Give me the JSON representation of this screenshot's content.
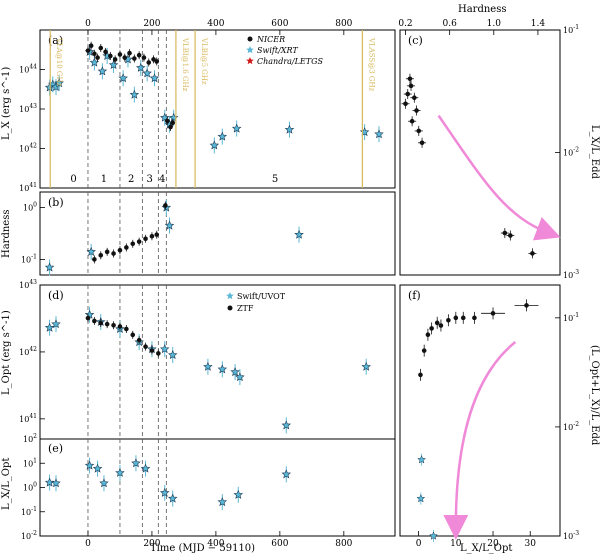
{
  "figure": {
    "top_axis_label": "",
    "hardness_axis_label": "Hardness",
    "bottom_xlabel": "Time (MJD − 59110)",
    "right_bottom_xlabel": "L_X/L_Opt"
  },
  "colors": {
    "nicer": "#111111",
    "swift": "#5ab7d6",
    "chandra": "#d11a1a",
    "radio_line": "#d7b85a",
    "arrow": "#f08ad8"
  },
  "chart_data": [
    {
      "id": "a",
      "type": "scatter",
      "panel_label": "(a)",
      "ylabel": "L_X (erg s^-1)",
      "ylog": true,
      "ylim": [
        1e+40,
        1e+44
      ],
      "xlim": [
        -150,
        960
      ],
      "yticks": [
        "10^41",
        "10^42",
        "10^43",
        "10^44"
      ],
      "xticks_top": [
        "0",
        "200",
        "400",
        "600",
        "800"
      ],
      "xtick_values": [
        0,
        200,
        400,
        600,
        800
      ],
      "legend": [
        {
          "name": "NICER",
          "marker": "dot",
          "color": "#111111"
        },
        {
          "name": "Swift/XRT",
          "marker": "star",
          "color": "#5ab7d6"
        },
        {
          "name": "Chandra/LETGS",
          "marker": "star",
          "color": "#d11a1a"
        }
      ],
      "epoch_dividers": [
        0,
        100,
        170,
        220,
        245
      ],
      "epoch_labels": [
        {
          "text": "0",
          "x": -45
        },
        {
          "text": "1",
          "x": 50
        },
        {
          "text": "2",
          "x": 135
        },
        {
          "text": "3",
          "x": 193
        },
        {
          "text": "4",
          "x": 232
        },
        {
          "text": "5",
          "x": 585
        }
      ],
      "radio_lines": [
        {
          "x": -118,
          "label": "VLA@10 GHz"
        },
        {
          "x": 275,
          "label": "VLBI@1.6 GHz"
        },
        {
          "x": 335,
          "label": "VLBI@5 GHz"
        },
        {
          "x": 858,
          "label": "VLASS@3 GHz"
        }
      ],
      "series": [
        {
          "name": "Swift/XRT",
          "points": [
            {
              "x": -120,
              "y": 3.5e+42
            },
            {
              "x": -110,
              "y": 4.2e+42
            },
            {
              "x": -100,
              "y": 3.6e+42
            },
            {
              "x": -90,
              "y": 4.5e+42
            },
            {
              "x": 5,
              "y": 2.8e+43
            },
            {
              "x": 20,
              "y": 1.5e+43
            },
            {
              "x": 45,
              "y": 9e+42
            },
            {
              "x": 60,
              "y": 2.2e+43
            },
            {
              "x": 80,
              "y": 1.3e+43
            },
            {
              "x": 110,
              "y": 6e+42
            },
            {
              "x": 125,
              "y": 1.8e+43
            },
            {
              "x": 145,
              "y": 2.3e+42
            },
            {
              "x": 165,
              "y": 1.1e+43
            },
            {
              "x": 185,
              "y": 8e+42
            },
            {
              "x": 208,
              "y": 6e+42
            },
            {
              "x": 240,
              "y": 6e+41
            },
            {
              "x": 255,
              "y": 4e+41
            },
            {
              "x": 268,
              "y": 6e+41
            },
            {
              "x": 395,
              "y": 1.2e+41
            },
            {
              "x": 420,
              "y": 2e+41
            },
            {
              "x": 465,
              "y": 3.2e+41
            },
            {
              "x": 630,
              "y": 3e+41
            },
            {
              "x": 865,
              "y": 2.6e+41
            },
            {
              "x": 910,
              "y": 2.3e+41
            }
          ]
        },
        {
          "name": "NICER",
          "points": [
            {
              "x": 0,
              "y": 3e+43
            },
            {
              "x": 10,
              "y": 4e+43
            },
            {
              "x": 20,
              "y": 2.5e+43
            },
            {
              "x": 30,
              "y": 2e+43
            },
            {
              "x": 40,
              "y": 3.5e+43
            },
            {
              "x": 55,
              "y": 2.8e+43
            },
            {
              "x": 70,
              "y": 2.2e+43
            },
            {
              "x": 85,
              "y": 1.8e+43
            },
            {
              "x": 100,
              "y": 2.4e+43
            },
            {
              "x": 115,
              "y": 2e+43
            },
            {
              "x": 130,
              "y": 2.6e+43
            },
            {
              "x": 145,
              "y": 1.9e+43
            },
            {
              "x": 160,
              "y": 2.3e+43
            },
            {
              "x": 175,
              "y": 2e+43
            },
            {
              "x": 190,
              "y": 1.5e+43
            },
            {
              "x": 205,
              "y": 1.8e+43
            },
            {
              "x": 215,
              "y": 1.6e+43
            },
            {
              "x": 248,
              "y": 5e+41
            },
            {
              "x": 258,
              "y": 3.5e+41
            },
            {
              "x": 265,
              "y": 4.5e+41
            }
          ]
        }
      ]
    },
    {
      "id": "b",
      "type": "scatter",
      "panel_label": "(b)",
      "ylabel": "Hardness",
      "ylog": true,
      "ylim": [
        0.05,
        2
      ],
      "xlim": [
        -150,
        960
      ],
      "yticks": [
        "10^-1",
        "10^0"
      ],
      "series": [
        {
          "name": "Swift/XRT",
          "points": [
            {
              "x": -120,
              "y": 0.07
            },
            {
              "x": 10,
              "y": 0.14
            },
            {
              "x": 245,
              "y": 1.0
            },
            {
              "x": 255,
              "y": 0.45
            },
            {
              "x": 660,
              "y": 0.3
            }
          ]
        },
        {
          "name": "NICER",
          "points": [
            {
              "x": 20,
              "y": 0.1
            },
            {
              "x": 40,
              "y": 0.12
            },
            {
              "x": 60,
              "y": 0.14
            },
            {
              "x": 80,
              "y": 0.13
            },
            {
              "x": 100,
              "y": 0.15
            },
            {
              "x": 120,
              "y": 0.17
            },
            {
              "x": 140,
              "y": 0.2
            },
            {
              "x": 160,
              "y": 0.22
            },
            {
              "x": 180,
              "y": 0.25
            },
            {
              "x": 200,
              "y": 0.28
            },
            {
              "x": 215,
              "y": 0.3
            },
            {
              "x": 242,
              "y": 1.1
            }
          ]
        }
      ]
    },
    {
      "id": "d",
      "type": "scatter",
      "panel_label": "(d)",
      "ylabel": "L_Opt (erg s^-1)",
      "ylog": true,
      "ylim": [
        5e+40,
        1e+43
      ],
      "xlim": [
        -150,
        960
      ],
      "yticks": [
        "10^41",
        "10^42",
        "10^43"
      ],
      "legend": [
        {
          "name": "Swift/UVOT",
          "marker": "star",
          "color": "#5ab7d6"
        },
        {
          "name": "ZTF",
          "marker": "dot",
          "color": "#111111"
        }
      ],
      "series": [
        {
          "name": "Swift/UVOT",
          "points": [
            {
              "x": -120,
              "y": 2.3e+42
            },
            {
              "x": -100,
              "y": 2.6e+42
            },
            {
              "x": 5,
              "y": 3.6e+42
            },
            {
              "x": 40,
              "y": 2.8e+42
            },
            {
              "x": 100,
              "y": 2.2e+42
            },
            {
              "x": 160,
              "y": 1.4e+42
            },
            {
              "x": 200,
              "y": 1.1e+42
            },
            {
              "x": 240,
              "y": 1.1e+42
            },
            {
              "x": 265,
              "y": 9e+41
            },
            {
              "x": 375,
              "y": 6e+41
            },
            {
              "x": 420,
              "y": 5.5e+41
            },
            {
              "x": 460,
              "y": 5e+41
            },
            {
              "x": 475,
              "y": 4.2e+41
            },
            {
              "x": 620,
              "y": 8e+40
            },
            {
              "x": 870,
              "y": 6e+41
            }
          ]
        },
        {
          "name": "ZTF",
          "points": [
            {
              "x": 0,
              "y": 3.2e+42
            },
            {
              "x": 20,
              "y": 2.9e+42
            },
            {
              "x": 40,
              "y": 2.7e+42
            },
            {
              "x": 60,
              "y": 2.6e+42
            },
            {
              "x": 80,
              "y": 2.5e+42
            },
            {
              "x": 100,
              "y": 2.4e+42
            },
            {
              "x": 120,
              "y": 2.2e+42
            },
            {
              "x": 140,
              "y": 1.8e+42
            },
            {
              "x": 160,
              "y": 1.5e+42
            },
            {
              "x": 180,
              "y": 1.2e+42
            },
            {
              "x": 200,
              "y": 1.05e+42
            },
            {
              "x": 220,
              "y": 9.5e+41
            }
          ]
        }
      ]
    },
    {
      "id": "e",
      "type": "scatter",
      "panel_label": "(e)",
      "ylabel": "L_X/L_Opt",
      "ylog": true,
      "ylim": [
        0.01,
        100
      ],
      "xlim": [
        -150,
        960
      ],
      "yticks": [
        "10^-2",
        "10^-1",
        "10^0",
        "10^1",
        "10^2"
      ],
      "xticks": [
        "0",
        "200",
        "400",
        "600",
        "800"
      ],
      "xtick_values": [
        0,
        200,
        400,
        600,
        800
      ],
      "series": [
        {
          "name": "ratio",
          "points": [
            {
              "x": -120,
              "y": 1.6
            },
            {
              "x": -100,
              "y": 1.5
            },
            {
              "x": 5,
              "y": 8
            },
            {
              "x": 30,
              "y": 6
            },
            {
              "x": 50,
              "y": 1.5
            },
            {
              "x": 100,
              "y": 4
            },
            {
              "x": 150,
              "y": 10
            },
            {
              "x": 180,
              "y": 6
            },
            {
              "x": 240,
              "y": 0.6
            },
            {
              "x": 265,
              "y": 0.35
            },
            {
              "x": 420,
              "y": 0.25
            },
            {
              "x": 470,
              "y": 0.5
            },
            {
              "x": 620,
              "y": 3.5
            }
          ]
        }
      ]
    },
    {
      "id": "c",
      "type": "scatter",
      "panel_label": "(c)",
      "xlabel_top": "Hardness",
      "ylabel_right": "L_X/L_Edd",
      "ylog": true,
      "ylim": [
        0.001,
        0.1
      ],
      "xlim": [
        0.15,
        1.6
      ],
      "xticks_top": [
        "0.2",
        "0.6",
        "1.0",
        "1.4"
      ],
      "xtick_values": [
        0.2,
        0.6,
        1.0,
        1.4
      ],
      "yticks_right": [
        "10^-3",
        "10^-2",
        "10^-1"
      ],
      "points": [
        {
          "x": 0.2,
          "y": 0.025
        },
        {
          "x": 0.22,
          "y": 0.03
        },
        {
          "x": 0.25,
          "y": 0.035
        },
        {
          "x": 0.28,
          "y": 0.028
        },
        {
          "x": 0.3,
          "y": 0.022
        },
        {
          "x": 0.26,
          "y": 0.018
        },
        {
          "x": 0.32,
          "y": 0.015
        },
        {
          "x": 0.35,
          "y": 0.012
        },
        {
          "x": 0.24,
          "y": 0.04
        },
        {
          "x": 1.1,
          "y": 0.0022
        },
        {
          "x": 1.15,
          "y": 0.0021
        },
        {
          "x": 1.35,
          "y": 0.0015
        }
      ]
    },
    {
      "id": "f",
      "type": "scatter",
      "panel_label": "(f)",
      "xlabel": "L_X/L_Opt",
      "ylabel_right": "(L_Opt+L_X)/L_Edd",
      "ylog": true,
      "ylim": [
        0.001,
        0.2
      ],
      "xlim": [
        -5,
        38
      ],
      "xticks": [
        "0",
        "10",
        "20",
        "30"
      ],
      "xtick_values": [
        0,
        10,
        20,
        30
      ],
      "yticks_right": [
        "10^-3",
        "10^-2",
        "10^-1"
      ],
      "points": [
        {
          "x": 0.5,
          "y": 0.03
        },
        {
          "x": 1.5,
          "y": 0.05
        },
        {
          "x": 2.5,
          "y": 0.07
        },
        {
          "x": 3.5,
          "y": 0.08
        },
        {
          "x": 5,
          "y": 0.09
        },
        {
          "x": 6,
          "y": 0.085
        },
        {
          "x": 8,
          "y": 0.095
        },
        {
          "x": 10,
          "y": 0.1
        },
        {
          "x": 12,
          "y": 0.1
        },
        {
          "x": 15,
          "y": 0.1
        },
        {
          "x": 20,
          "y": 0.11
        },
        {
          "x": 29,
          "y": 0.13
        },
        {
          "x": 0.8,
          "y": 0.005
        },
        {
          "x": 0.6,
          "y": 0.0022
        },
        {
          "x": 4,
          "y": 0.001
        }
      ]
    }
  ]
}
